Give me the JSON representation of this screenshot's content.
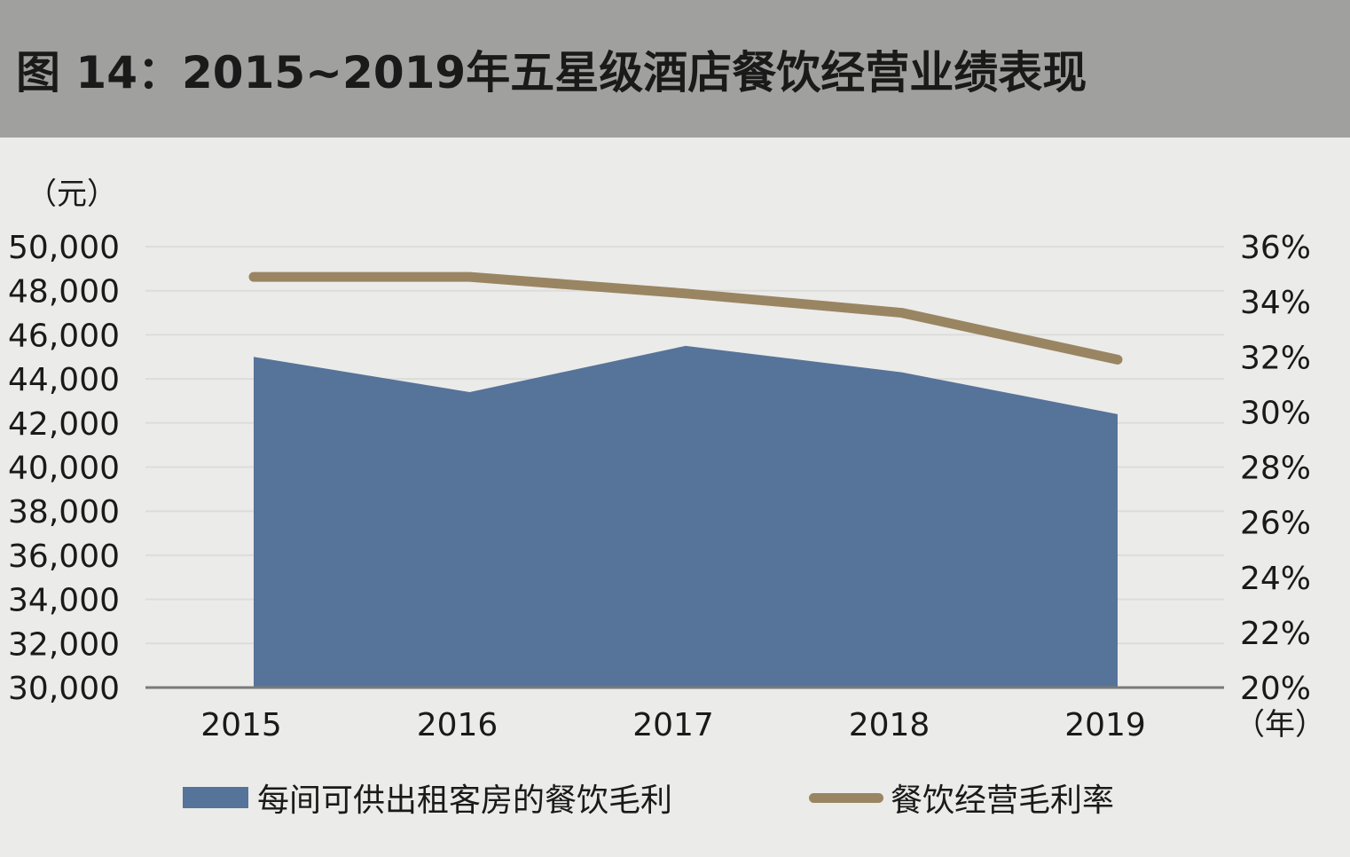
{
  "title": "图 14：2015~2019年五星级酒店餐饮经营业绩表现",
  "chart_data": {
    "type": "area",
    "x": [
      "2015",
      "2016",
      "2017",
      "2018",
      "2019"
    ],
    "xlabel": "（年）",
    "ylabel": "（元）",
    "ylim": [
      30000,
      50000
    ],
    "yticks": [
      "30,000",
      "32,000",
      "34,000",
      "36,000",
      "38,000",
      "40,000",
      "42,000",
      "44,000",
      "46,000",
      "48,000",
      "50,000"
    ],
    "y2lim": [
      0.2,
      0.36
    ],
    "y2ticks": [
      "20%",
      "22%",
      "24%",
      "26%",
      "28%",
      "30%",
      "32%",
      "34%",
      "36%"
    ],
    "grid": true,
    "legend_position": "bottom",
    "series": [
      {
        "name": "每间可供出租客房的餐饮毛利",
        "type": "area",
        "axis": "left",
        "color": "#56739a",
        "values": [
          45000,
          43400,
          45500,
          44300,
          42400
        ]
      },
      {
        "name": "餐饮经营毛利率",
        "type": "line",
        "axis": "right",
        "color": "#9a8563",
        "values": [
          0.349,
          0.349,
          0.343,
          0.336,
          0.319
        ]
      }
    ]
  }
}
